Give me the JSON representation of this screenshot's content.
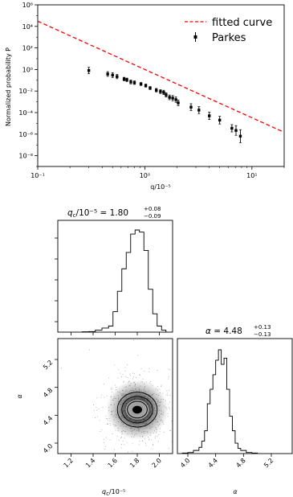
{
  "chart_data": [
    {
      "type": "scatter",
      "log_x": true,
      "log_y": true,
      "xlim": [
        0.1,
        20
      ],
      "ylim": [
        1e-09,
        1000000.0
      ],
      "xlabel": "q/10⁻⁵",
      "ylabel": "Normalized probability P",
      "xtick_labels": [
        "10⁻¹",
        "10⁰",
        "10¹"
      ],
      "ytick_labels": [
        "10⁶",
        "10⁴",
        "10²",
        "10⁰",
        "10⁻²",
        "10⁻⁴",
        "10⁻⁶",
        "10⁻⁸"
      ],
      "grid": false,
      "legend_position": "top-right",
      "fitted_curve": {
        "name": "fitted curve",
        "color": "#ff0000",
        "style": "dashed",
        "amplitude": 1,
        "q_ref": 1,
        "slope": -4.48
      },
      "series": [
        {
          "name": "Parkes",
          "color": "#000000",
          "marker": "square",
          "x": [
            0.3,
            0.45,
            0.5,
            0.55,
            0.64,
            0.68,
            0.74,
            0.8,
            0.92,
            1.02,
            1.12,
            1.28,
            1.4,
            1.5,
            1.58,
            1.7,
            1.82,
            1.95,
            2.05,
            2.7,
            3.2,
            4.0,
            5.0,
            6.5,
            7.1,
            7.8
          ],
          "y": [
            0.8,
            0.38,
            0.3,
            0.22,
            0.13,
            0.11,
            0.07,
            0.06,
            0.045,
            0.032,
            0.019,
            0.012,
            0.009,
            0.0075,
            0.0044,
            0.0026,
            0.0022,
            0.0016,
            0.0008,
            0.00032,
            0.00017,
            5e-05,
            2e-05,
            3.5e-06,
            2.2e-06,
            6.5e-07
          ],
          "yerr_dex": [
            0.3,
            0.22,
            0.22,
            0.2,
            0.16,
            0.16,
            0.18,
            0.16,
            0.14,
            0.14,
            0.14,
            0.16,
            0.18,
            0.2,
            0.2,
            0.22,
            0.24,
            0.25,
            0.26,
            0.32,
            0.32,
            0.34,
            0.36,
            0.34,
            0.45,
            0.6
          ]
        }
      ]
    },
    {
      "type": "corner",
      "parameters": [
        {
          "name": "q_c/10^-5",
          "median": 1.8,
          "err_plus": 0.08,
          "err_minus": 0.09
        },
        {
          "name": "alpha",
          "median": 4.48,
          "err_plus": 0.13,
          "err_minus": 0.13
        }
      ],
      "titles": [
        {
          "main": "q",
          "sub": "c",
          "rest": "/10⁻⁵ = 1.80",
          "plus": "+0.08",
          "minus": "−0.09"
        },
        {
          "main": "α",
          "sub": "",
          "rest": " = 4.48",
          "plus": "+0.13",
          "minus": "−0.13"
        }
      ],
      "x_axis_label": "qᴄ/10⁻⁵",
      "x_axis_label_parts": {
        "main": "q",
        "sub": "c",
        "rest": "/10⁻⁵"
      },
      "y_axis_label": "α",
      "alpha_axis_label": "α",
      "qc_ticks": [
        "1.2",
        "1.4",
        "1.6",
        "1.8",
        "2.0"
      ],
      "alpha_ticks": [
        "4.0",
        "4.4",
        "4.8",
        "5.2"
      ],
      "alpha_range": [
        3.85,
        5.5
      ],
      "qc_range": [
        1.08,
        2.12
      ],
      "hist_qc": {
        "edges": [
          1.3,
          1.36,
          1.42,
          1.48,
          1.54,
          1.58,
          1.62,
          1.66,
          1.7,
          1.74,
          1.78,
          1.82,
          1.86,
          1.9,
          1.94,
          1.98,
          2.02,
          2.06
        ],
        "counts": [
          0.003,
          0.005,
          0.02,
          0.04,
          0.06,
          0.2,
          0.4,
          0.62,
          0.78,
          0.96,
          1.0,
          0.98,
          0.8,
          0.42,
          0.18,
          0.06,
          0.02
        ]
      },
      "hist_alpha": {
        "edges": [
          3.92,
          4.0,
          4.08,
          4.16,
          4.2,
          4.24,
          4.28,
          4.32,
          4.36,
          4.4,
          4.44,
          4.48,
          4.52,
          4.56,
          4.6,
          4.64,
          4.68,
          4.72,
          4.76,
          4.84,
          4.92,
          5.0
        ],
        "counts": [
          0.005,
          0.01,
          0.03,
          0.06,
          0.12,
          0.22,
          0.48,
          0.62,
          0.76,
          0.9,
          1.0,
          0.86,
          0.92,
          0.62,
          0.36,
          0.22,
          0.1,
          0.05,
          0.03,
          0.01,
          0.005
        ]
      },
      "contour_ellipses": [
        {
          "qc": 1.8,
          "alpha": 4.48,
          "qc_radius": 0.04,
          "alpha_radius": 0.05
        },
        {
          "qc": 1.8,
          "alpha": 4.48,
          "qc_radius": 0.09,
          "alpha_radius": 0.12
        },
        {
          "qc": 1.8,
          "alpha": 4.48,
          "qc_radius": 0.14,
          "alpha_radius": 0.19
        },
        {
          "qc": 1.8,
          "alpha": 4.48,
          "qc_radius": 0.18,
          "alpha_radius": 0.25
        }
      ],
      "density_peak": {
        "qc": 1.8,
        "alpha": 4.48,
        "qc_sigma": 0.085,
        "alpha_sigma": 0.13
      }
    }
  ]
}
